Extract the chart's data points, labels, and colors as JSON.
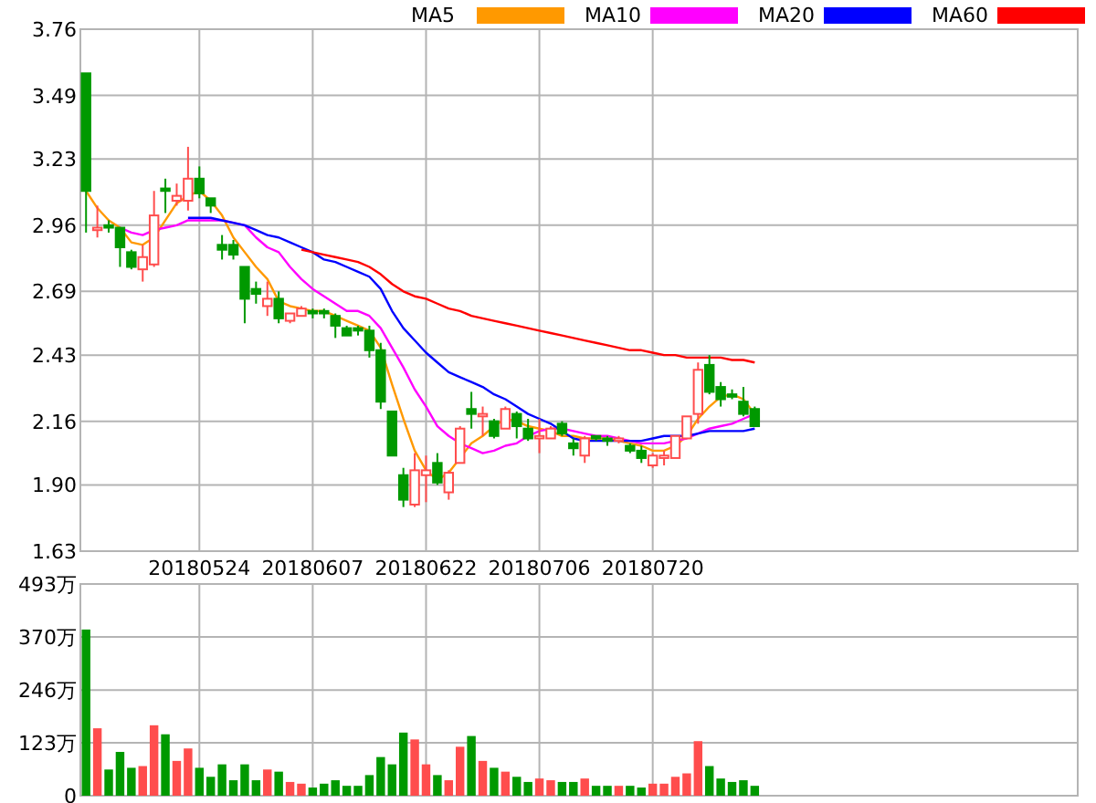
{
  "chart_data": [
    {
      "type": "candlestick",
      "categories": [
        null,
        null,
        null,
        null,
        null,
        null,
        null,
        null,
        null,
        null,
        "20180524",
        null,
        null,
        null,
        null,
        null,
        null,
        null,
        null,
        null,
        "20180607",
        null,
        null,
        null,
        null,
        null,
        null,
        null,
        null,
        null,
        "20180622",
        null,
        null,
        null,
        null,
        null,
        null,
        null,
        null,
        null,
        "20180706",
        null,
        null,
        null,
        null,
        null,
        null,
        null,
        null,
        null,
        "20180720",
        null,
        null,
        null,
        null,
        null,
        null,
        null,
        null,
        null,
        null,
        null,
        null,
        null,
        null,
        null,
        null,
        null,
        null,
        null,
        null,
        null,
        null,
        null,
        null,
        null,
        null,
        null,
        null,
        null,
        null,
        null,
        null,
        null,
        null,
        null,
        null,
        null
      ],
      "ohlc": [
        [
          3.58,
          3.58,
          2.93,
          3.1
        ],
        [
          2.94,
          3.04,
          2.91,
          2.95
        ],
        [
          2.96,
          2.98,
          2.93,
          2.95
        ],
        [
          2.95,
          2.95,
          2.79,
          2.87
        ],
        [
          2.85,
          2.86,
          2.78,
          2.79
        ],
        [
          2.78,
          2.88,
          2.73,
          2.83
        ],
        [
          2.8,
          3.1,
          2.79,
          3.0
        ],
        [
          3.11,
          3.15,
          3.01,
          3.1
        ],
        [
          3.06,
          3.13,
          3.04,
          3.08
        ],
        [
          3.06,
          3.28,
          3.02,
          3.15
        ],
        [
          3.15,
          3.2,
          3.07,
          3.09
        ],
        [
          3.07,
          3.07,
          3.01,
          3.04
        ],
        [
          2.88,
          2.92,
          2.82,
          2.86
        ],
        [
          2.88,
          2.9,
          2.82,
          2.84
        ],
        [
          2.79,
          2.79,
          2.56,
          2.66
        ],
        [
          2.7,
          2.73,
          2.64,
          2.68
        ],
        [
          2.63,
          2.73,
          2.59,
          2.66
        ],
        [
          2.66,
          2.69,
          2.56,
          2.58
        ],
        [
          2.57,
          2.6,
          2.56,
          2.6
        ],
        [
          2.59,
          2.63,
          2.59,
          2.62
        ],
        [
          2.61,
          2.62,
          2.58,
          2.6
        ],
        [
          2.61,
          2.62,
          2.58,
          2.6
        ],
        [
          2.59,
          2.6,
          2.5,
          2.55
        ],
        [
          2.54,
          2.55,
          2.51,
          2.51
        ],
        [
          2.54,
          2.55,
          2.51,
          2.53
        ],
        [
          2.53,
          2.55,
          2.42,
          2.45
        ],
        [
          2.45,
          2.48,
          2.21,
          2.24
        ],
        [
          2.2,
          2.2,
          2.02,
          2.02
        ],
        [
          1.94,
          1.97,
          1.81,
          1.84
        ],
        [
          1.82,
          2.03,
          1.81,
          1.96
        ],
        [
          1.94,
          2.02,
          1.83,
          1.96
        ],
        [
          1.99,
          2.03,
          1.9,
          1.91
        ],
        [
          1.87,
          1.96,
          1.84,
          1.95
        ],
        [
          1.99,
          2.14,
          1.99,
          2.13
        ],
        [
          2.21,
          2.28,
          2.13,
          2.19
        ],
        [
          2.18,
          2.22,
          2.1,
          2.19
        ],
        [
          2.16,
          2.17,
          2.09,
          2.1
        ],
        [
          2.13,
          2.22,
          2.13,
          2.21
        ],
        [
          2.19,
          2.2,
          2.09,
          2.14
        ],
        [
          2.13,
          2.17,
          2.08,
          2.09
        ],
        [
          2.09,
          2.17,
          2.03,
          2.1
        ],
        [
          2.09,
          2.14,
          2.09,
          2.13
        ],
        [
          2.15,
          2.16,
          2.1,
          2.11
        ],
        [
          2.07,
          2.09,
          2.02,
          2.05
        ],
        [
          2.02,
          2.1,
          1.99,
          2.09
        ],
        [
          2.1,
          2.1,
          2.08,
          2.09
        ],
        [
          2.09,
          2.1,
          2.06,
          2.08
        ],
        [
          2.08,
          2.1,
          2.07,
          2.09
        ],
        [
          2.06,
          2.07,
          2.03,
          2.04
        ],
        [
          2.04,
          2.06,
          1.99,
          2.01
        ],
        [
          1.98,
          2.03,
          1.97,
          2.02
        ],
        [
          2.01,
          2.04,
          1.98,
          2.02
        ],
        [
          2.01,
          2.1,
          2.01,
          2.1
        ],
        [
          2.09,
          2.18,
          2.09,
          2.18
        ],
        [
          2.19,
          2.4,
          2.15,
          2.37
        ],
        [
          2.39,
          2.43,
          2.27,
          2.28
        ],
        [
          2.3,
          2.32,
          2.22,
          2.25
        ],
        [
          2.27,
          2.29,
          2.25,
          2.26
        ],
        [
          2.24,
          2.3,
          2.18,
          2.19
        ],
        [
          2.21,
          2.22,
          2.14,
          2.14
        ],
        null,
        null,
        null,
        null,
        null,
        null,
        null,
        null,
        null,
        null,
        null,
        null,
        null,
        null,
        null,
        null,
        null,
        null,
        null,
        null,
        null,
        null,
        null,
        null,
        null,
        null,
        null,
        null
      ],
      "colors": [
        "#009900",
        "#ff4d4d",
        "#009900",
        "#009900",
        "#009900",
        "#ff4d4d",
        "#ff4d4d",
        "#009900",
        "#ff4d4d",
        "#ff4d4d",
        "#009900",
        "#009900",
        "#009900",
        "#009900",
        "#009900",
        "#009900",
        "#ff4d4d",
        "#009900",
        "#ff4d4d",
        "#ff4d4d",
        "#009900",
        "#009900",
        "#009900",
        "#009900",
        "#009900",
        "#009900",
        "#009900",
        "#009900",
        "#009900",
        "#ff4d4d",
        "#ff4d4d",
        "#009900",
        "#ff4d4d",
        "#ff4d4d",
        "#009900",
        "#ff4d4d",
        "#009900",
        "#ff4d4d",
        "#009900",
        "#009900",
        "#ff4d4d",
        "#ff4d4d",
        "#009900",
        "#009900",
        "#ff4d4d",
        "#009900",
        "#009900",
        "#ff4d4d",
        "#009900",
        "#009900",
        "#ff4d4d",
        "#ff4d4d",
        "#ff4d4d",
        "#ff4d4d",
        "#ff4d4d",
        "#009900",
        "#009900",
        "#009900",
        "#009900",
        "#009900",
        null,
        null,
        null,
        null,
        null,
        null,
        null,
        null,
        null,
        null,
        null,
        null,
        null,
        null,
        null,
        null,
        null,
        null,
        null,
        null,
        null,
        null,
        null,
        null,
        null,
        null,
        null,
        null
      ],
      "series": [
        {
          "type": "line",
          "name": "MA5",
          "color": "#ff9900",
          "values": [
            3.1,
            3.03,
            2.98,
            2.95,
            2.89,
            2.88,
            2.91,
            2.98,
            3.05,
            3.08,
            3.1,
            3.06,
            3.0,
            2.91,
            2.85,
            2.79,
            2.74,
            2.65,
            2.63,
            2.62,
            2.61,
            2.61,
            2.59,
            2.57,
            2.55,
            2.53,
            2.46,
            2.31,
            2.17,
            2.04,
            1.96,
            1.92,
            1.95,
            2.01,
            2.07,
            2.1,
            2.14,
            2.17,
            2.16,
            2.14,
            2.13,
            2.12,
            2.1,
            2.1,
            2.09,
            2.09,
            2.09,
            2.08,
            2.07,
            2.06,
            2.04,
            2.04,
            2.06,
            2.1,
            2.17,
            2.22,
            2.26,
            2.27,
            2.25,
            2.19,
            null,
            null,
            null,
            null,
            null,
            null,
            null,
            null,
            null,
            null,
            null,
            null,
            null,
            null,
            null,
            null,
            null,
            null,
            null,
            null,
            null,
            null,
            null,
            null,
            null,
            null,
            null,
            null
          ]
        },
        {
          "type": "line",
          "name": "MA10",
          "color": "#ff00ff",
          "values": [
            null,
            null,
            null,
            2.95,
            2.93,
            2.92,
            2.94,
            2.95,
            2.96,
            2.98,
            2.98,
            2.98,
            2.98,
            2.97,
            2.96,
            2.91,
            2.87,
            2.85,
            2.79,
            2.74,
            2.7,
            2.67,
            2.64,
            2.61,
            2.61,
            2.59,
            2.54,
            2.46,
            2.38,
            2.29,
            2.22,
            2.14,
            2.1,
            2.07,
            2.05,
            2.03,
            2.04,
            2.06,
            2.07,
            2.1,
            2.12,
            2.13,
            2.13,
            2.12,
            2.11,
            2.1,
            2.1,
            2.09,
            2.08,
            2.07,
            2.07,
            2.07,
            2.08,
            2.09,
            2.11,
            2.13,
            2.14,
            2.15,
            2.17,
            2.19,
            null,
            null,
            null,
            null,
            null,
            null,
            null,
            null,
            null,
            null,
            null,
            null,
            null,
            null,
            null,
            null,
            null,
            null,
            null,
            null,
            null,
            null,
            null,
            null,
            null,
            null,
            null,
            null
          ]
        },
        {
          "type": "line",
          "name": "MA20",
          "color": "#0000ff",
          "values": [
            null,
            null,
            null,
            null,
            null,
            null,
            null,
            null,
            null,
            2.99,
            2.99,
            2.99,
            2.98,
            2.97,
            2.96,
            2.94,
            2.92,
            2.91,
            2.89,
            2.87,
            2.85,
            2.82,
            2.81,
            2.79,
            2.77,
            2.75,
            2.7,
            2.61,
            2.54,
            2.49,
            2.44,
            2.4,
            2.36,
            2.34,
            2.32,
            2.3,
            2.27,
            2.25,
            2.22,
            2.19,
            2.17,
            2.15,
            2.12,
            2.09,
            2.08,
            2.08,
            2.08,
            2.08,
            2.08,
            2.08,
            2.09,
            2.1,
            2.1,
            2.1,
            2.11,
            2.12,
            2.12,
            2.12,
            2.12,
            2.13,
            null,
            null,
            null,
            null,
            null,
            null,
            null,
            null,
            null,
            null,
            null,
            null,
            null,
            null,
            null,
            null,
            null,
            null,
            null,
            null,
            null,
            null,
            null,
            null,
            null,
            null,
            null,
            null
          ]
        },
        {
          "type": "line",
          "name": "MA60",
          "color": "#ff0000",
          "values": [
            null,
            null,
            null,
            null,
            null,
            null,
            null,
            null,
            null,
            null,
            null,
            null,
            null,
            null,
            null,
            null,
            null,
            null,
            null,
            2.86,
            2.85,
            2.84,
            2.83,
            2.82,
            2.81,
            2.79,
            2.76,
            2.72,
            2.69,
            2.67,
            2.66,
            2.64,
            2.62,
            2.61,
            2.59,
            2.58,
            2.57,
            2.56,
            2.55,
            2.54,
            2.53,
            2.52,
            2.51,
            2.5,
            2.49,
            2.48,
            2.47,
            2.46,
            2.45,
            2.45,
            2.44,
            2.43,
            2.43,
            2.42,
            2.42,
            2.42,
            2.42,
            2.41,
            2.41,
            2.4,
            null,
            null,
            null,
            null,
            null,
            null,
            null,
            null,
            null,
            null,
            null,
            null,
            null,
            null,
            null,
            null,
            null,
            null,
            null,
            null,
            null,
            null,
            null,
            null,
            null,
            null,
            null,
            null
          ]
        }
      ],
      "ylim": [
        1.63,
        3.76
      ],
      "yticks": [
        {
          "value": 1.63,
          "label": "1.63"
        },
        {
          "value": 1.9,
          "label": "1.90"
        },
        2.16,
        2.43,
        2.69,
        2.96,
        3.23,
        3.49,
        3.76
      ],
      "grid": true,
      "legend": "top right"
    },
    {
      "type": "bar",
      "categories": [
        null,
        null,
        null,
        null,
        null,
        null,
        null,
        null,
        null,
        null,
        "20180524",
        null,
        null,
        null,
        null,
        null,
        null,
        null,
        null,
        null,
        "20180607",
        null,
        null,
        null,
        null,
        null,
        null,
        null,
        null,
        null,
        "20180622",
        null,
        null,
        null,
        null,
        null,
        null,
        null,
        null,
        null,
        "20180706",
        null,
        null,
        null,
        null,
        null,
        null,
        null,
        null,
        null,
        "20180720",
        null,
        null,
        null,
        null,
        null,
        null,
        null,
        null,
        null,
        null,
        null,
        null,
        null,
        null,
        null,
        null,
        null,
        null,
        null,
        null,
        null,
        null,
        null,
        null,
        null,
        null,
        null,
        null,
        null,
        null,
        null,
        null,
        null,
        null,
        null,
        null,
        null
      ],
      "values": [
        387,
        157,
        61,
        102,
        65,
        69,
        164,
        143,
        81,
        110,
        65,
        44,
        73,
        36,
        73,
        36,
        61,
        56,
        32,
        28,
        19,
        28,
        36,
        23,
        23,
        48,
        90,
        73,
        147,
        131,
        73,
        48,
        36,
        114,
        139,
        81,
        65,
        56,
        44,
        32,
        40,
        36,
        32,
        32,
        40,
        23,
        23,
        23,
        23,
        19,
        28,
        28,
        44,
        52,
        127,
        69,
        40,
        32,
        36,
        23,
        null,
        null,
        null,
        null,
        null,
        null,
        null,
        null,
        null,
        null,
        null,
        null,
        null,
        null,
        null,
        null,
        null,
        null,
        null,
        null,
        null,
        null,
        null,
        null,
        null,
        null,
        null,
        null
      ],
      "colors": [
        "#009900",
        "#ff4d4d",
        "#009900",
        "#009900",
        "#009900",
        "#ff4d4d",
        "#ff4d4d",
        "#009900",
        "#ff4d4d",
        "#ff4d4d",
        "#009900",
        "#009900",
        "#009900",
        "#009900",
        "#009900",
        "#009900",
        "#ff4d4d",
        "#009900",
        "#ff4d4d",
        "#ff4d4d",
        "#009900",
        "#009900",
        "#009900",
        "#009900",
        "#009900",
        "#009900",
        "#009900",
        "#009900",
        "#009900",
        "#ff4d4d",
        "#ff4d4d",
        "#009900",
        "#ff4d4d",
        "#ff4d4d",
        "#009900",
        "#ff4d4d",
        "#009900",
        "#ff4d4d",
        "#009900",
        "#009900",
        "#ff4d4d",
        "#ff4d4d",
        "#009900",
        "#009900",
        "#ff4d4d",
        "#009900",
        "#009900",
        "#ff4d4d",
        "#009900",
        "#009900",
        "#ff4d4d",
        "#ff4d4d",
        "#ff4d4d",
        "#ff4d4d",
        "#ff4d4d",
        "#009900",
        "#009900",
        "#009900",
        "#009900",
        "#009900",
        null,
        null,
        null,
        null,
        null,
        null,
        null,
        null,
        null,
        null,
        null,
        null,
        null,
        null,
        null,
        null,
        null,
        null,
        null,
        null,
        null,
        null,
        null,
        null,
        null,
        null,
        null,
        null
      ],
      "ylim": [
        0,
        493
      ],
      "yticks": [
        0,
        {
          "value": 123,
          "label": "123万"
        },
        {
          "value": 246,
          "label": "246万"
        },
        {
          "value": 370,
          "label": "370万"
        },
        {
          "value": 493,
          "label": "493万"
        }
      ],
      "grid": true,
      "tick_labels": "y"
    }
  ]
}
